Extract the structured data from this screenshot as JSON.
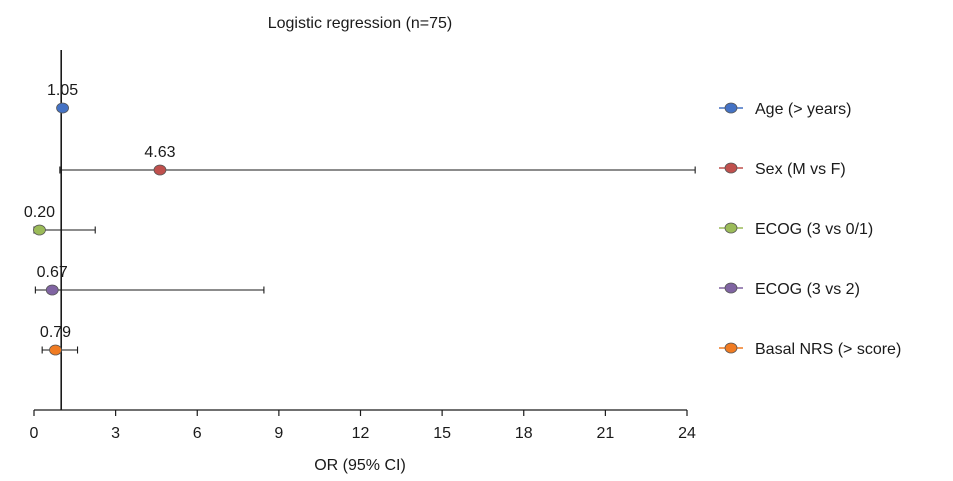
{
  "chart_data": {
    "type": "scatter",
    "subtype": "forest-plot",
    "title": "Logistic regression (n=75)",
    "xlabel": "OR (95% CI)",
    "ylabel": "",
    "xlim": [
      0,
      24
    ],
    "xticks": [
      0,
      3,
      6,
      9,
      12,
      15,
      18,
      21,
      24
    ],
    "reference_line": 1,
    "grid": false,
    "legend_position": "right",
    "series": [
      {
        "name": "Age (> years)",
        "or": 1.05,
        "ci_low": null,
        "ci_high": null,
        "label": "1.05",
        "color": "#4472C4"
      },
      {
        "name": "Sex (M vs F)",
        "or": 4.63,
        "ci_low": 0.95,
        "ci_high": 24.3,
        "label": "4.63",
        "color": "#C0504D"
      },
      {
        "name": "ECOG (3 vs 0/1)",
        "or": 0.2,
        "ci_low": 0.0,
        "ci_high": 2.25,
        "label": "0.20",
        "color": "#9BBB59"
      },
      {
        "name": "ECOG (3 vs 2)",
        "or": 0.67,
        "ci_low": 0.05,
        "ci_high": 8.45,
        "label": "0.67",
        "color": "#8064A2"
      },
      {
        "name": "Basal NRS (> score)",
        "or": 0.79,
        "ci_low": 0.3,
        "ci_high": 1.6,
        "label": "0.79",
        "color": "#F07B22"
      }
    ]
  }
}
